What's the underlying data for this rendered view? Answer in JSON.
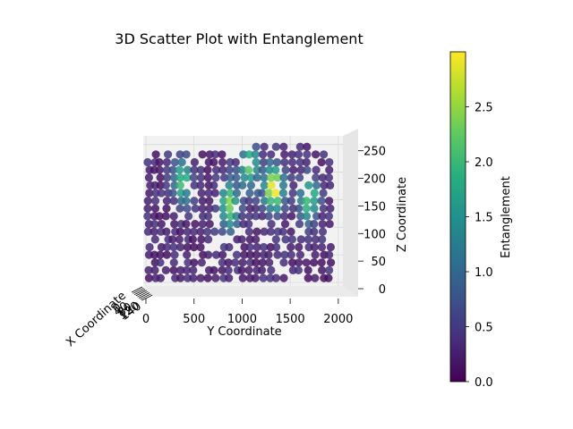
{
  "chart_data": {
    "type": "scatter",
    "title": "3D Scatter Plot with Entanglement",
    "xlabel": "X Coordinate",
    "ylabel": "Y Coordinate",
    "zlabel": "Z Coordinate",
    "colorbar_label": "Entanglement",
    "colormap": "viridis",
    "y_ticks": [
      "0",
      "500",
      "1000",
      "1500",
      "2000"
    ],
    "z_ticks": [
      "0",
      "50",
      "100",
      "150",
      "200",
      "250"
    ],
    "x_ticks": [
      "0",
      "20",
      "40",
      "60",
      "80",
      "100",
      "120",
      "140"
    ],
    "colorbar_ticks": [
      "0.0",
      "0.5",
      "1.0",
      "1.5",
      "2.0",
      "2.5"
    ],
    "ylim": [
      0,
      2048
    ],
    "zlim": [
      0,
      256
    ],
    "color_range": [
      0,
      3.0
    ],
    "hotspots": [
      {
        "y": 380,
        "z": 185,
        "entanglement": 1.8
      },
      {
        "y": 870,
        "z": 140,
        "entanglement": 2.2
      },
      {
        "y": 1080,
        "z": 210,
        "entanglement": 1.9
      },
      {
        "y": 1330,
        "z": 170,
        "entanglement": 2.9
      },
      {
        "y": 1700,
        "z": 150,
        "entanglement": 2.0
      }
    ],
    "columns_y": [
      30,
      90,
      150,
      220,
      290,
      360,
      430,
      500,
      580,
      650,
      720,
      800,
      870,
      940,
      1010,
      1080,
      1150,
      1220,
      1290,
      1360,
      1440,
      1520,
      1600,
      1680,
      1760,
      1840,
      1910
    ],
    "column_top_z": [
      230,
      235,
      230,
      240,
      240,
      238,
      240,
      225,
      235,
      240,
      240,
      245,
      240,
      245,
      245,
      240,
      255,
      250,
      255,
      252,
      255,
      255,
      252,
      250,
      245,
      240,
      230
    ],
    "z_levels": [
      8,
      22,
      36,
      50,
      64,
      78,
      92,
      106,
      120,
      134,
      148,
      162,
      176,
      190,
      204,
      218,
      232,
      246
    ]
  }
}
